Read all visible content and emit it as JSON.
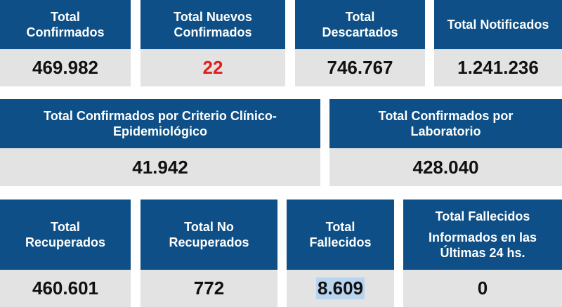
{
  "cards": {
    "total_confirmados": {
      "title_1": "Total",
      "title_2": "Confirmados",
      "value": "469.982"
    },
    "total_nuevos_confirmados": {
      "title_1": "Total Nuevos",
      "title_2": "Confirmados",
      "value": "22"
    },
    "total_descartados": {
      "title_1": "Total",
      "title_2": "Descartados",
      "value": "746.767"
    },
    "total_notificados": {
      "title_1": "Total Notificados",
      "value": "1.241.236"
    },
    "confirmados_criterio": {
      "title_1": "Total Confirmados por Criterio Clínico-",
      "title_2": "Epidemiológico",
      "value": "41.942"
    },
    "confirmados_laboratorio": {
      "title_1": "Total Confirmados por",
      "title_2": "Laboratorio",
      "value": "428.040"
    },
    "total_recuperados": {
      "title_1": "Total",
      "title_2": "Recuperados",
      "value": "460.601"
    },
    "total_no_recuperados": {
      "title_1": "Total No",
      "title_2": "Recuperados",
      "value": "772"
    },
    "total_fallecidos": {
      "title_1": "Total",
      "title_2": "Fallecidos",
      "value": "8.609"
    },
    "fallecidos_24hs": {
      "title_1": "Total Fallecidos",
      "title_2": "Informados en las",
      "title_3": "Últimas 24 hs.",
      "value": "0"
    }
  },
  "colors": {
    "header_bg": "#0d4f86",
    "value_bg": "#e3e3e3",
    "highlight_value": "#e0201b"
  }
}
